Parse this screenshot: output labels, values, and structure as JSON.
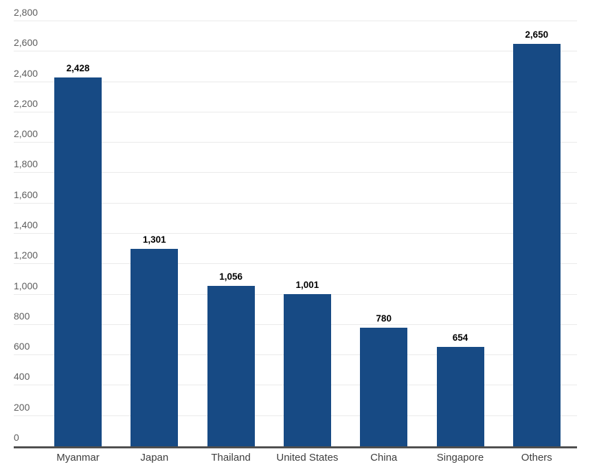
{
  "chart_data": {
    "type": "bar",
    "title": "",
    "xlabel": "",
    "ylabel": "",
    "categories": [
      "Myanmar",
      "Japan",
      "Thailand",
      "United States",
      "China",
      "Singapore",
      "Others"
    ],
    "values": [
      2428,
      1301,
      1056,
      1001,
      780,
      654,
      2650
    ],
    "value_labels": [
      "2,428",
      "1,301",
      "1,056",
      "1,001",
      "780",
      "654",
      "2,650"
    ],
    "ylim": [
      0,
      2800
    ],
    "ytick_step": 200,
    "yticks": [
      0,
      200,
      400,
      600,
      800,
      1000,
      1200,
      1400,
      1600,
      1800,
      2000,
      2200,
      2400,
      2600,
      2800
    ],
    "ytick_labels": [
      "0",
      "200",
      "400",
      "600",
      "800",
      "1,000",
      "1,200",
      "1,400",
      "1,600",
      "1,800",
      "2,000",
      "2,200",
      "2,400",
      "2,600",
      "2,800"
    ],
    "grid": true,
    "legend": "none",
    "colors": {
      "bar": "#174a84",
      "gridline": "#eaeaea",
      "baseline": "#4f4f4f",
      "y_tick_label": "#5c5c5c",
      "category_label": "#3d3d3d",
      "value_label": "#000000",
      "background": "#ffffff"
    }
  }
}
